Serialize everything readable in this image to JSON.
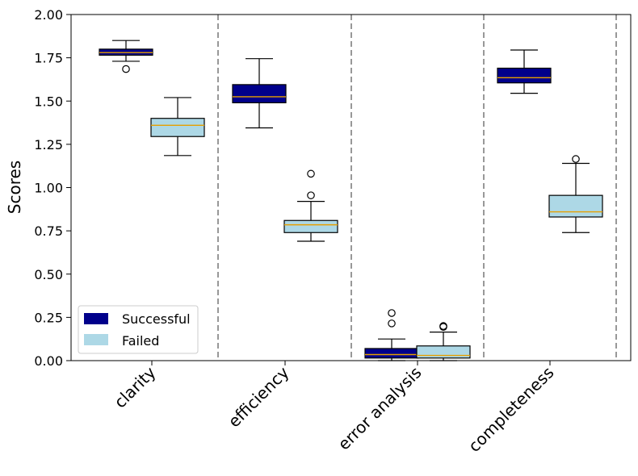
{
  "chart_data": {
    "type": "box",
    "title": "",
    "xlabel": "",
    "ylabel": "Scores",
    "ylim": [
      0,
      2
    ],
    "yticks": [
      "0.00",
      "0.25",
      "0.50",
      "0.75",
      "1.00",
      "1.25",
      "1.50",
      "1.75",
      "2.00"
    ],
    "categories": [
      "clarity",
      "efficiency",
      "error analysis",
      "completeness"
    ],
    "grid": false,
    "separators": "dashed vertical lines between categories",
    "legend_position": "lower-left",
    "series": [
      {
        "name": "Successful",
        "color": "#00008b",
        "boxes": [
          {
            "whislo": 1.73,
            "q1": 1.765,
            "med": 1.78,
            "q3": 1.8,
            "whishi": 1.85,
            "fliers": [
              1.685
            ]
          },
          {
            "whislo": 1.345,
            "q1": 1.49,
            "med": 1.525,
            "q3": 1.595,
            "whishi": 1.745,
            "fliers": []
          },
          {
            "whislo": 0.0,
            "q1": 0.015,
            "med": 0.035,
            "q3": 0.07,
            "whishi": 0.125,
            "fliers": [
              0.215,
              0.275
            ]
          },
          {
            "whislo": 1.545,
            "q1": 1.605,
            "med": 1.635,
            "q3": 1.69,
            "whishi": 1.795,
            "fliers": []
          }
        ]
      },
      {
        "name": "Failed",
        "color": "#add8e6",
        "boxes": [
          {
            "whislo": 1.185,
            "q1": 1.295,
            "med": 1.36,
            "q3": 1.4,
            "whishi": 1.52,
            "fliers": []
          },
          {
            "whislo": 0.69,
            "q1": 0.74,
            "med": 0.785,
            "q3": 0.81,
            "whishi": 0.92,
            "fliers": [
              0.955,
              1.08
            ]
          },
          {
            "whislo": 0.0,
            "q1": 0.015,
            "med": 0.03,
            "q3": 0.085,
            "whishi": 0.165,
            "fliers": [
              0.195,
              0.2
            ]
          },
          {
            "whislo": 0.74,
            "q1": 0.83,
            "med": 0.86,
            "q3": 0.955,
            "whishi": 1.14,
            "fliers": [
              1.165
            ]
          }
        ]
      }
    ],
    "median_color": "#e69f00"
  }
}
